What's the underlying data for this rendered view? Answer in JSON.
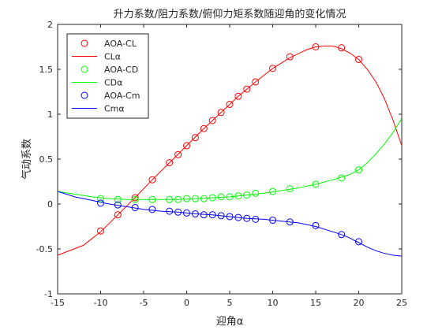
{
  "chart_data": {
    "type": "line",
    "title": "升力系数/阻力系数/俯仰力矩系数随迎角的变化情况",
    "xlabel": "迎角α",
    "ylabel": "气动系数",
    "xlim": [
      -15,
      25
    ],
    "ylim": [
      -1,
      2
    ],
    "xticks": [
      -15,
      -10,
      -5,
      0,
      5,
      10,
      15,
      20,
      25
    ],
    "yticks": [
      -1,
      -0.5,
      0,
      0.5,
      1,
      1.5,
      2
    ],
    "xtick_labels": [
      "-15",
      "-10",
      "-5",
      "0",
      "5",
      "10",
      "15",
      "20",
      "25"
    ],
    "ytick_labels": [
      "-1",
      "-0.5",
      "0",
      "0.5",
      "1",
      "1.5",
      "2"
    ],
    "grid": false,
    "legend_position": "top-left",
    "series": [
      {
        "name": "AOA-CL",
        "kind": "markers",
        "color": "#ff0000",
        "x": [
          -10,
          -8,
          -6,
          -4,
          -2,
          -1,
          0,
          1,
          2,
          3,
          4,
          5,
          6,
          7,
          8,
          10,
          12,
          15,
          18,
          20
        ],
        "y": [
          -0.3,
          -0.12,
          0.07,
          0.27,
          0.46,
          0.55,
          0.65,
          0.74,
          0.84,
          0.93,
          1.02,
          1.11,
          1.2,
          1.28,
          1.36,
          1.51,
          1.64,
          1.75,
          1.74,
          1.61
        ]
      },
      {
        "name": "CLα",
        "kind": "line",
        "color": "#ff0000",
        "x": [
          -15,
          -12,
          -10,
          -8,
          -6,
          -4,
          -2,
          0,
          2,
          4,
          6,
          8,
          10,
          12,
          14,
          15,
          16,
          17,
          18,
          19,
          20,
          21,
          22,
          23,
          24,
          25
        ],
        "y": [
          -0.57,
          -0.46,
          -0.31,
          -0.12,
          0.07,
          0.27,
          0.46,
          0.65,
          0.84,
          1.02,
          1.2,
          1.36,
          1.51,
          1.63,
          1.72,
          1.75,
          1.76,
          1.76,
          1.73,
          1.68,
          1.61,
          1.5,
          1.36,
          1.17,
          0.93,
          0.65
        ]
      },
      {
        "name": "AOA-CD",
        "kind": "markers",
        "color": "#00ff00",
        "x": [
          -10,
          -8,
          -6,
          -4,
          -2,
          -1,
          0,
          1,
          2,
          3,
          4,
          5,
          6,
          7,
          8,
          10,
          12,
          15,
          18,
          20
        ],
        "y": [
          0.06,
          0.05,
          0.05,
          0.05,
          0.05,
          0.05,
          0.06,
          0.06,
          0.06,
          0.07,
          0.08,
          0.08,
          0.09,
          0.1,
          0.12,
          0.14,
          0.17,
          0.22,
          0.29,
          0.38
        ]
      },
      {
        "name": "CDα",
        "kind": "line",
        "color": "#00ff00",
        "x": [
          -15,
          -13,
          -11,
          -9,
          -7,
          -5,
          -3,
          -1,
          1,
          3,
          5,
          7,
          9,
          11,
          13,
          15,
          17,
          19,
          20,
          21,
          22,
          23,
          24,
          25
        ],
        "y": [
          0.14,
          0.11,
          0.08,
          0.06,
          0.05,
          0.05,
          0.05,
          0.05,
          0.06,
          0.07,
          0.08,
          0.1,
          0.12,
          0.15,
          0.18,
          0.22,
          0.27,
          0.33,
          0.38,
          0.46,
          0.56,
          0.67,
          0.8,
          0.95
        ]
      },
      {
        "name": "AOA-Cm",
        "kind": "markers",
        "color": "#0000ff",
        "x": [
          -10,
          -8,
          -6,
          -4,
          -2,
          -1,
          0,
          1,
          2,
          3,
          4,
          5,
          6,
          7,
          8,
          10,
          12,
          15,
          18,
          20
        ],
        "y": [
          0.01,
          -0.01,
          -0.04,
          -0.06,
          -0.08,
          -0.09,
          -0.1,
          -0.11,
          -0.12,
          -0.12,
          -0.13,
          -0.14,
          -0.15,
          -0.16,
          -0.17,
          -0.18,
          -0.2,
          -0.24,
          -0.34,
          -0.42
        ]
      },
      {
        "name": "Cmα",
        "kind": "line",
        "color": "#0000ff",
        "x": [
          -15,
          -13,
          -11,
          -9,
          -7,
          -5,
          -3,
          -1,
          1,
          3,
          5,
          7,
          9,
          11,
          13,
          15,
          17,
          18,
          19,
          20,
          21,
          22,
          23,
          24,
          25
        ],
        "y": [
          0.14,
          0.08,
          0.04,
          0.0,
          -0.03,
          -0.06,
          -0.08,
          -0.09,
          -0.11,
          -0.12,
          -0.14,
          -0.16,
          -0.17,
          -0.19,
          -0.21,
          -0.25,
          -0.31,
          -0.34,
          -0.38,
          -0.43,
          -0.48,
          -0.52,
          -0.55,
          -0.57,
          -0.58
        ]
      }
    ]
  }
}
